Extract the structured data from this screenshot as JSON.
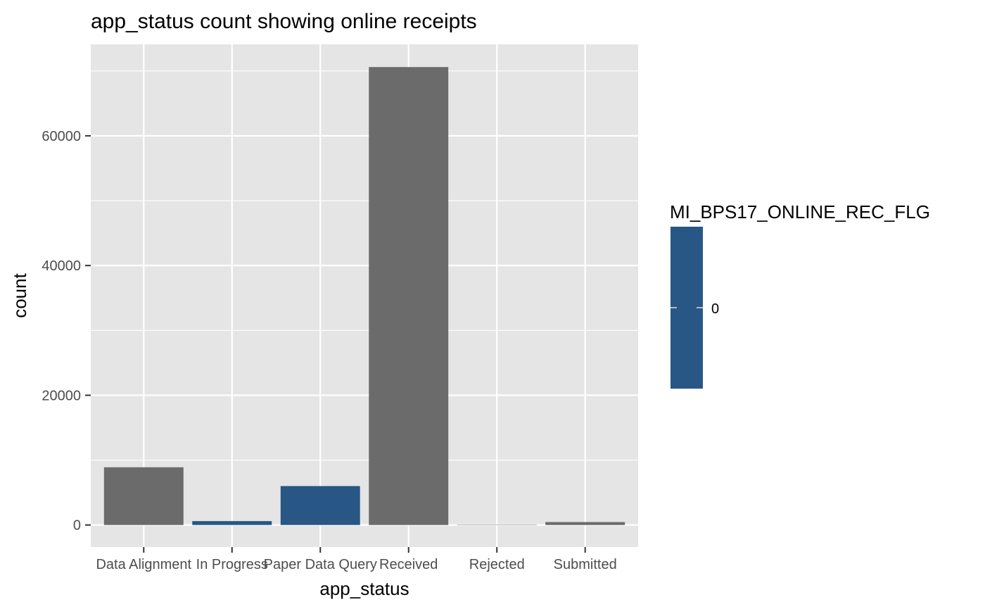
{
  "chart_data": {
    "type": "bar",
    "title": "app_status count showing online receipts",
    "xlabel": "app_status",
    "ylabel": "count",
    "categories": [
      "Data Alignment",
      "In Progress",
      "Paper Data Query",
      "Received",
      "Rejected",
      "Submitted"
    ],
    "values": [
      8900,
      600,
      6000,
      70600,
      50,
      450
    ],
    "bar_colors": [
      "#6b6b6b",
      "#285786",
      "#285786",
      "#6b6b6b",
      "#6b6b6b",
      "#6b6b6b"
    ],
    "ylim": [
      -3400,
      74100
    ],
    "yticks": [
      0,
      20000,
      40000,
      60000
    ],
    "ytick_labels": [
      "0",
      "20000",
      "40000",
      "60000"
    ],
    "grid": true,
    "legend": {
      "title": "MI_BPS17_ONLINE_REC_FLG",
      "position": "right",
      "type": "colorbar",
      "tick_label": "0",
      "color": "#285786"
    },
    "panel_background": "#e5e5e5",
    "grid_color": "#ffffff"
  }
}
